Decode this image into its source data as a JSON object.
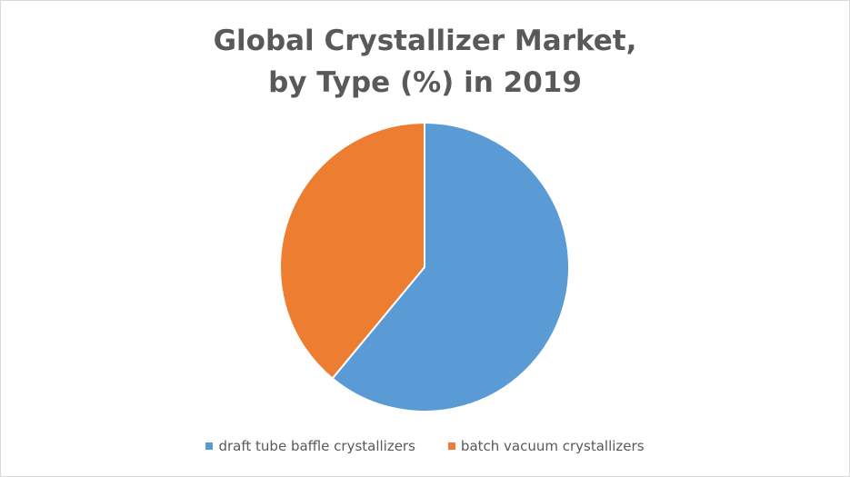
{
  "chart_data": {
    "type": "pie",
    "title": [
      "Global Crystallizer Market,",
      "by Type (%) in 2019"
    ],
    "categories": [
      "draft tube baffle crystallizers",
      "batch vacuum crystallizers"
    ],
    "values": [
      61,
      39
    ],
    "colors": [
      "#5b9bd5",
      "#ed7d31"
    ],
    "start": "12 o'clock, clockwise",
    "legend": "bottom"
  }
}
